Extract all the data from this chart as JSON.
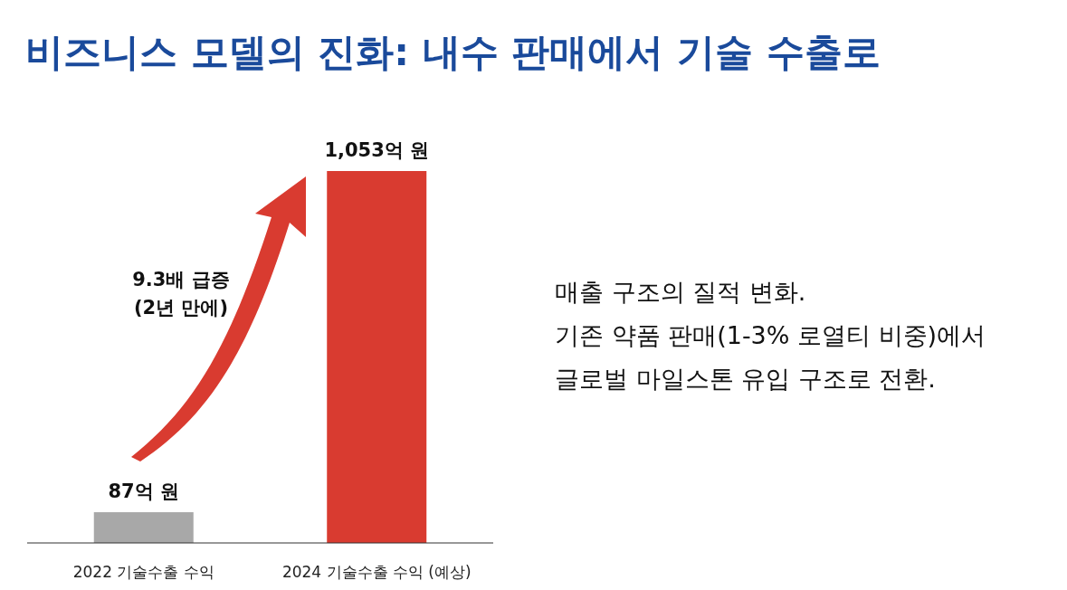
{
  "chart_data": {
    "type": "bar",
    "title": "비즈니스 모델의 진화: 내수 판매에서 기술 수출로",
    "categories": [
      "2022 기술수출 수익",
      "2024 기술수출 수익 (예상)"
    ],
    "values": [
      87,
      1053
    ],
    "colors": [
      "#a8a8a8",
      "#d93b30"
    ],
    "value_labels": [
      "87억 원",
      "1,053억 원"
    ],
    "annotations": [
      "9.3배 급증\n(2년 만에)",
      "매출 구조의 질적 변화.\n기존 약품 판매(1-3% 로열티 비중)에서\n글로벌 마일스톤 유입 구조로 전환."
    ]
  }
}
